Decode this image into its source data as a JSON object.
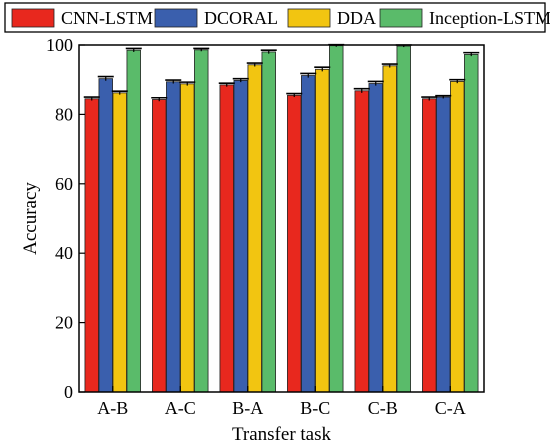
{
  "chart_data": {
    "type": "bar",
    "title": "",
    "xlabel": "Transfer task",
    "ylabel": "Accuracy",
    "categories": [
      "A-B",
      "A-C",
      "B-A",
      "B-C",
      "C-B",
      "C-A"
    ],
    "ylim": [
      0,
      100
    ],
    "yticks": [
      0,
      20,
      40,
      60,
      80,
      100
    ],
    "grid": false,
    "legend_position": "top",
    "error_bars": true,
    "series": [
      {
        "name": "CNN-LSTM",
        "color": "#e8281e",
        "values": [
          84.5,
          84.3,
          88.5,
          85.5,
          86.8,
          84.5
        ],
        "errors": [
          0.5,
          0.5,
          0.5,
          0.5,
          0.6,
          0.5
        ]
      },
      {
        "name": "DCORAL",
        "color": "#3a5fad",
        "values": [
          90.3,
          89.4,
          89.8,
          91.2,
          88.9,
          85.0
        ],
        "errors": [
          0.6,
          0.5,
          0.5,
          0.6,
          0.6,
          0.4
        ]
      },
      {
        "name": "DDA",
        "color": "#f2c511",
        "values": [
          86.2,
          88.8,
          94.3,
          93.0,
          94.0,
          89.5
        ],
        "errors": [
          0.5,
          0.5,
          0.5,
          0.6,
          0.5,
          0.5
        ]
      },
      {
        "name": "Inception-LSTM",
        "color": "#5abb6a",
        "values": [
          98.5,
          98.6,
          98.0,
          99.8,
          99.7,
          97.3
        ],
        "errors": [
          0.5,
          0.4,
          0.5,
          0.3,
          0.3,
          0.5
        ]
      }
    ]
  }
}
